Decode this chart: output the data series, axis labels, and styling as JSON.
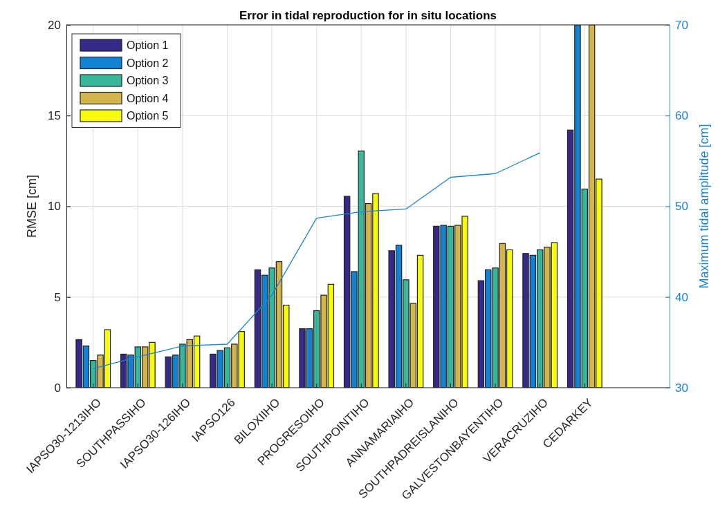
{
  "chart_data": {
    "type": "bar",
    "title": "Error in tidal reproduction for in situ locations",
    "ylabel": "RMSE [cm]",
    "y2label": "Maximum tidal amplitude [cm]",
    "categories": [
      "IAPSO30-1213IHO",
      "SOUTHPASSIHO",
      "IAPSO30-126IHO",
      "IAPSO126",
      "BILOXIIHO",
      "PROGRESOIHO",
      "SOUTHPOINTIHO",
      "ANNAMARIAIHO",
      "SOUTHPADREISLANIHO",
      "GALVESTONBAYENTIHO",
      "VERACRUZIHO",
      "CEDARKEY"
    ],
    "series": [
      {
        "name": "Option 1",
        "color": "#352a87",
        "values": [
          2.65,
          1.85,
          1.7,
          1.85,
          6.5,
          3.25,
          10.55,
          7.55,
          8.9,
          5.9,
          7.4,
          14.2
        ]
      },
      {
        "name": "Option 2",
        "color": "#1283d4",
        "values": [
          2.3,
          1.8,
          1.8,
          2.05,
          6.2,
          3.25,
          6.4,
          7.85,
          8.95,
          6.5,
          7.3,
          20
        ]
      },
      {
        "name": "Option 3",
        "color": "#38b69b",
        "values": [
          1.5,
          2.25,
          2.4,
          2.2,
          6.6,
          4.25,
          13.05,
          5.95,
          8.9,
          6.6,
          7.6,
          10.95
        ]
      },
      {
        "name": "Option 4",
        "color": "#d3b54c",
        "values": [
          1.8,
          2.25,
          2.65,
          2.4,
          6.95,
          5.1,
          10.15,
          4.65,
          8.95,
          7.95,
          7.75,
          20
        ]
      },
      {
        "name": "Option 5",
        "color": "#f8fa0d",
        "values": [
          3.2,
          2.5,
          2.85,
          3.1,
          4.55,
          5.7,
          10.7,
          7.3,
          9.45,
          7.6,
          8.0,
          11.5
        ]
      },
      {
        "type": "line",
        "axis": "y2",
        "color": "#1a84d0",
        "values": [
          32.1,
          33.4,
          34.6,
          34.8,
          40.2,
          48.7,
          49.4,
          49.7,
          53.2,
          53.6,
          55.9,
          null
        ]
      }
    ],
    "ylim": [
      0,
      20
    ],
    "yticks": [
      0,
      5,
      10,
      15,
      20
    ],
    "y2lim": [
      30,
      70
    ],
    "y2ticks": [
      30,
      40,
      50,
      60,
      70
    ],
    "grid": true,
    "legend": "top left",
    "marker": "none"
  }
}
